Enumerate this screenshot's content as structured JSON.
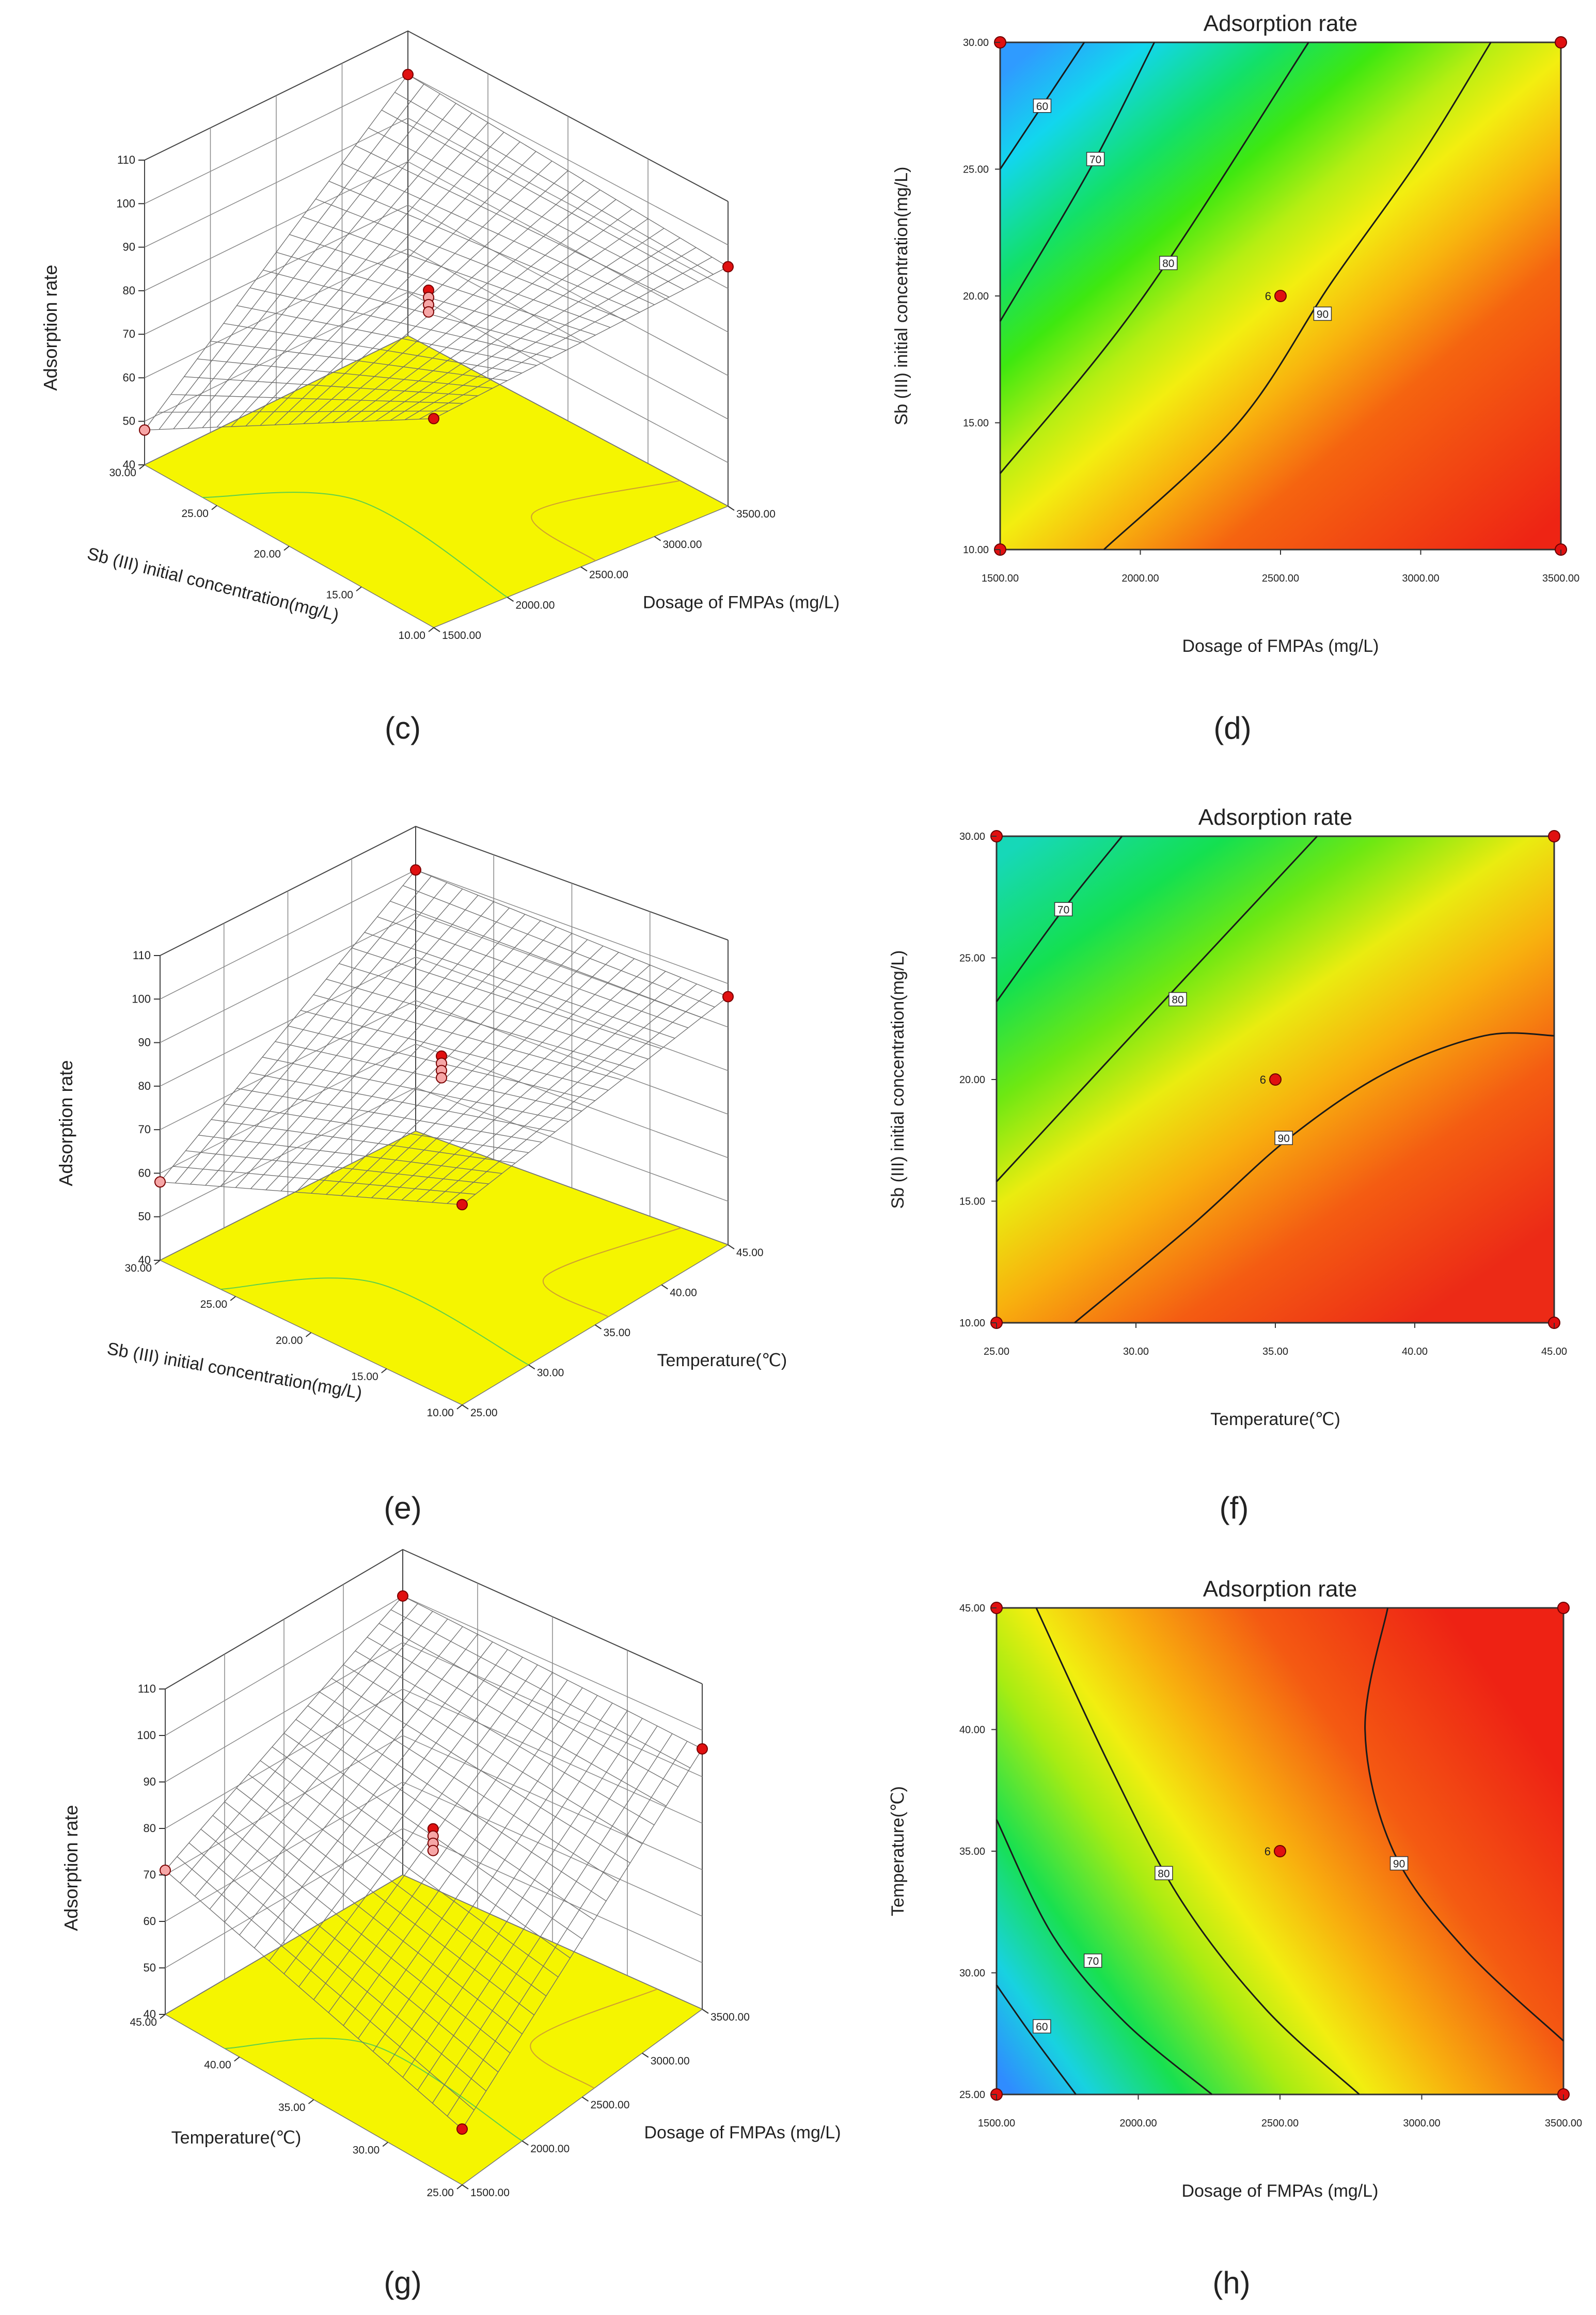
{
  "figure": {
    "panel_labels": [
      "(c)",
      "(d)",
      "(e)",
      "(f)",
      "(g)",
      "(h)"
    ]
  },
  "chart_data": [
    {
      "id": "c",
      "type": "surface3d",
      "zlabel": "Adsorption rate",
      "zticks": [
        "40",
        "50",
        "60",
        "70",
        "80",
        "90",
        "100",
        "110"
      ],
      "left_axis_label": "Sb (III) initial concentration(mg/L)",
      "left_ticks": [
        "10.00",
        "15.00",
        "20.00",
        "25.00",
        "30.00"
      ],
      "right_axis_label": "Dosage of FMPAs (mg/L)",
      "right_ticks": [
        "1500.00",
        "2000.00",
        "2500.00",
        "3000.00",
        "3500.00"
      ],
      "floor_color": "#f5f500",
      "mesh_color": "#6b6b6b",
      "corner_values": {
        "front": 88,
        "left": 48,
        "back": 100,
        "right": 95
      },
      "panel_label": "(c)"
    },
    {
      "id": "d",
      "type": "contour",
      "title": "Adsorption rate",
      "xlabel": "Dosage of FMPAs (mg/L)",
      "ylabel": "Sb (III) initial concentration(mg/L)",
      "xlim": [
        1500,
        3500
      ],
      "ylim": [
        10,
        30
      ],
      "xticks": [
        "1500.00",
        "2000.00",
        "2500.00",
        "3000.00",
        "3500.00"
      ],
      "yticks": [
        "10.00",
        "15.00",
        "20.00",
        "25.00",
        "30.00"
      ],
      "levels": [
        "60",
        "70",
        "80",
        "90"
      ],
      "contours": [
        {
          "level": "60",
          "points": [
            [
              1500,
              25
            ],
            [
              1650,
              27.5
            ],
            [
              1800,
              30
            ]
          ],
          "label_at": [
            1650,
            27.5
          ]
        },
        {
          "level": "70",
          "points": [
            [
              1500,
              19
            ],
            [
              1820,
              25
            ],
            [
              2050,
              30
            ]
          ],
          "label_at": [
            1840,
            25.4
          ]
        },
        {
          "level": "80",
          "points": [
            [
              1500,
              13
            ],
            [
              2000,
              19.8
            ],
            [
              2600,
              30
            ]
          ],
          "label_at": [
            2100,
            21.3
          ]
        },
        {
          "level": "90",
          "points": [
            [
              1870,
              10
            ],
            [
              2350,
              15
            ],
            [
              2680,
              20.5
            ],
            [
              3000,
              25.5
            ],
            [
              3250,
              30
            ]
          ],
          "label_at": [
            2650,
            19.3
          ]
        }
      ],
      "center_point": {
        "x": 2500,
        "y": 20,
        "label": "6"
      },
      "design_points": [
        [
          1500,
          10
        ],
        [
          1500,
          30
        ],
        [
          3500,
          10
        ],
        [
          3500,
          30
        ],
        [
          2500,
          20
        ]
      ],
      "panel_label": "(d)"
    },
    {
      "id": "e",
      "type": "surface3d",
      "zlabel": "Adsorption rate",
      "zticks": [
        "40",
        "50",
        "60",
        "70",
        "80",
        "90",
        "100",
        "110"
      ],
      "left_axis_label": "Sb (III) initial concentration(mg/L)",
      "left_ticks": [
        "10.00",
        "15.00",
        "20.00",
        "25.00",
        "30.00"
      ],
      "right_axis_label": "Temperature(℃)",
      "right_ticks": [
        "25.00",
        "30.00",
        "35.00",
        "40.00",
        "45.00"
      ],
      "floor_color": "#f5f500",
      "mesh_color": "#6b6b6b",
      "corner_values": {
        "front": 86,
        "left": 58,
        "back": 100,
        "right": 97
      },
      "panel_label": "(e)"
    },
    {
      "id": "f",
      "type": "contour",
      "title": "Adsorption rate",
      "xlabel": "Temperature(℃)",
      "ylabel": "Sb (III) initial concentration(mg/L)",
      "xlim": [
        25,
        45
      ],
      "ylim": [
        10,
        30
      ],
      "xticks": [
        "25.00",
        "30.00",
        "35.00",
        "40.00",
        "45.00"
      ],
      "yticks": [
        "10.00",
        "15.00",
        "20.00",
        "25.00",
        "30.00"
      ],
      "levels": [
        "70",
        "80",
        "90"
      ],
      "contours": [
        {
          "level": "70",
          "points": [
            [
              25,
              23.2
            ],
            [
              27.4,
              27
            ],
            [
              29.5,
              30
            ]
          ],
          "label_at": [
            27.4,
            27
          ]
        },
        {
          "level": "80",
          "points": [
            [
              25,
              15.8
            ],
            [
              30,
              22
            ],
            [
              36.5,
              30
            ]
          ],
          "label_at": [
            31.5,
            23.3
          ]
        },
        {
          "level": "90",
          "points": [
            [
              27.8,
              10
            ],
            [
              32,
              14
            ],
            [
              35.5,
              17.6
            ],
            [
              39,
              20.3
            ],
            [
              42.5,
              21.8
            ],
            [
              45,
              21.8
            ]
          ],
          "label_at": [
            35.3,
            17.6
          ]
        }
      ],
      "center_point": {
        "x": 35,
        "y": 20,
        "label": "6"
      },
      "design_points": [
        [
          25,
          10
        ],
        [
          25,
          30
        ],
        [
          45,
          10
        ],
        [
          45,
          30
        ],
        [
          35,
          20
        ]
      ],
      "panel_label": "(f)"
    },
    {
      "id": "g",
      "type": "surface3d",
      "zlabel": "Adsorption rate",
      "zticks": [
        "40",
        "50",
        "60",
        "70",
        "80",
        "90",
        "100",
        "110"
      ],
      "left_axis_label": "Temperature(℃)",
      "left_ticks": [
        "25.00",
        "30.00",
        "35.00",
        "40.00",
        "45.00"
      ],
      "right_axis_label": "Dosage of FMPAs (mg/L)",
      "right_ticks": [
        "1500.00",
        "2000.00",
        "2500.00",
        "3000.00",
        "3500.00"
      ],
      "floor_color": "#f5f500",
      "mesh_color": "#6b6b6b",
      "corner_values": {
        "front": 52,
        "left": 71,
        "back": 100,
        "right": 96
      },
      "panel_label": "(g)"
    },
    {
      "id": "h",
      "type": "contour",
      "title": "Adsorption rate",
      "xlabel": "Dosage of FMPAs (mg/L)",
      "ylabel": "Temperature(℃)",
      "xlim": [
        1500,
        3500
      ],
      "ylim": [
        25,
        45
      ],
      "xticks": [
        "1500.00",
        "2000.00",
        "2500.00",
        "3000.00",
        "3500.00"
      ],
      "yticks": [
        "25.00",
        "30.00",
        "35.00",
        "40.00",
        "45.00"
      ],
      "levels": [
        "60",
        "70",
        "80",
        "90"
      ],
      "contours": [
        {
          "level": "60",
          "points": [
            [
              1500,
              29.5
            ],
            [
              1620,
              27.5
            ],
            [
              1780,
              25
            ]
          ],
          "label_at": [
            1660,
            27.8
          ]
        },
        {
          "level": "70",
          "points": [
            [
              1500,
              36.3
            ],
            [
              1700,
              31.5
            ],
            [
              1950,
              28
            ],
            [
              2260,
              25
            ]
          ],
          "label_at": [
            1840,
            30.5
          ]
        },
        {
          "level": "80",
          "points": [
            [
              1640,
              45
            ],
            [
              1900,
              38.5
            ],
            [
              2150,
              33
            ],
            [
              2450,
              28.5
            ],
            [
              2780,
              25
            ]
          ],
          "label_at": [
            2090,
            34.1
          ]
        },
        {
          "level": "90",
          "points": [
            [
              2880,
              45
            ],
            [
              2800,
              40
            ],
            [
              2900,
              35
            ],
            [
              3150,
              31
            ],
            [
              3500,
              27.2
            ]
          ],
          "label_at": [
            2920,
            34.5
          ]
        }
      ],
      "center_point": {
        "x": 2500,
        "y": 35,
        "label": "6"
      },
      "design_points": [
        [
          1500,
          25
        ],
        [
          1500,
          45
        ],
        [
          3500,
          25
        ],
        [
          3500,
          45
        ],
        [
          2500,
          35
        ]
      ],
      "panel_label": "(h)"
    }
  ]
}
